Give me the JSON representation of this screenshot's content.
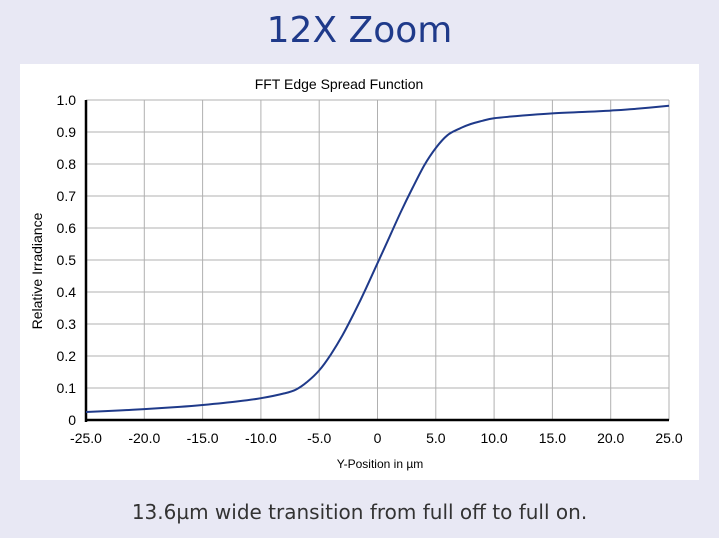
{
  "slide": {
    "title": "12X Zoom",
    "caption": "13.6µm wide transition from full off to full on."
  },
  "chart_data": {
    "type": "line",
    "title": "FFT Edge Spread Function",
    "xlabel": "Y-Position in µm",
    "ylabel": "Relative Irradiance",
    "xlim": [
      -25,
      25
    ],
    "ylim": [
      0,
      1.0
    ],
    "grid": true,
    "x_ticks": [
      -25,
      -20,
      -15,
      -10,
      -5,
      0,
      5,
      10,
      15,
      20,
      25
    ],
    "x_tick_labels": [
      "-25.0",
      "-20.0",
      "-15.0",
      "-10.0",
      "-5.0",
      "0",
      "5.0",
      "10.0",
      "15.0",
      "20.0",
      "25.0"
    ],
    "y_ticks": [
      0,
      0.1,
      0.2,
      0.3,
      0.4,
      0.5,
      0.6,
      0.7,
      0.8,
      0.9,
      1.0
    ],
    "y_tick_labels": [
      "0",
      "0.1",
      "0.2",
      "0.3",
      "0.4",
      "0.5",
      "0.6",
      "0.7",
      "0.8",
      "0.9",
      "1.0"
    ],
    "series": [
      {
        "color": "#1f3a8a",
        "x": [
          -25,
          -22,
          -20,
          -17,
          -15,
          -12,
          -10,
          -8,
          -7,
          -6,
          -5,
          -4,
          -3,
          -2,
          -1,
          0,
          1,
          2,
          3,
          4,
          5,
          6,
          7,
          8,
          9,
          10,
          12,
          15,
          18,
          20,
          22,
          25
        ],
        "y": [
          0.025,
          0.03,
          0.034,
          0.041,
          0.047,
          0.058,
          0.068,
          0.083,
          0.095,
          0.12,
          0.155,
          0.205,
          0.265,
          0.335,
          0.41,
          0.49,
          0.57,
          0.65,
          0.725,
          0.795,
          0.85,
          0.89,
          0.91,
          0.925,
          0.935,
          0.943,
          0.95,
          0.958,
          0.963,
          0.967,
          0.972,
          0.982
        ]
      }
    ]
  }
}
